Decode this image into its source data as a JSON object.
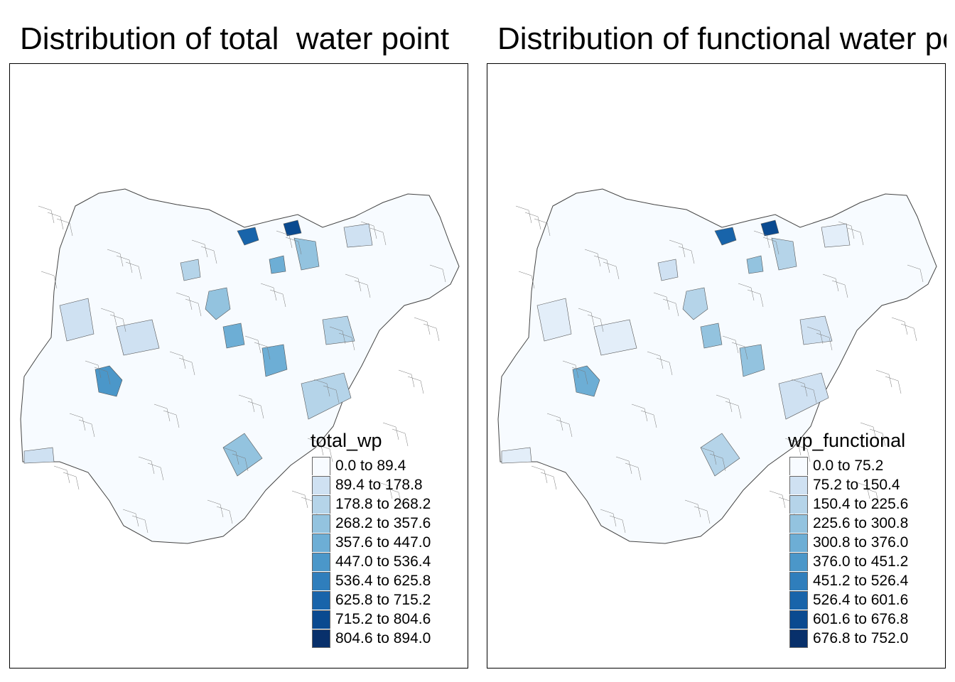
{
  "panels": [
    {
      "title": "Distribution of total  water point",
      "legend_title": "total_wp",
      "legend": [
        "0.0 to 89.4",
        "89.4 to 178.8",
        "178.8 to 268.2",
        "268.2 to 357.6",
        "357.6 to 447.0",
        "447.0 to 536.4",
        "536.4 to 625.8",
        "625.8 to 715.2",
        "715.2 to 804.6",
        "804.6 to 894.0"
      ]
    },
    {
      "title": "Distribution of functional water point",
      "legend_title": "wp_functional",
      "legend": [
        "0.0 to 75.2",
        "75.2 to 150.4",
        "150.4 to 225.6",
        "225.6 to 300.8",
        "300.8 to 376.0",
        "376.0 to 451.2",
        "451.2 to 526.4",
        "526.4 to 601.6",
        "601.6 to 676.8",
        "676.8 to 752.0"
      ]
    }
  ],
  "palette": [
    "#f7fbff",
    "#e3eef9",
    "#cfe1f2",
    "#b5d4e9",
    "#93c3df",
    "#6daed5",
    "#4b97c9",
    "#2f7ebc",
    "#1864aa",
    "#0a4a90",
    "#08306b"
  ],
  "map_type": "choropleth"
}
